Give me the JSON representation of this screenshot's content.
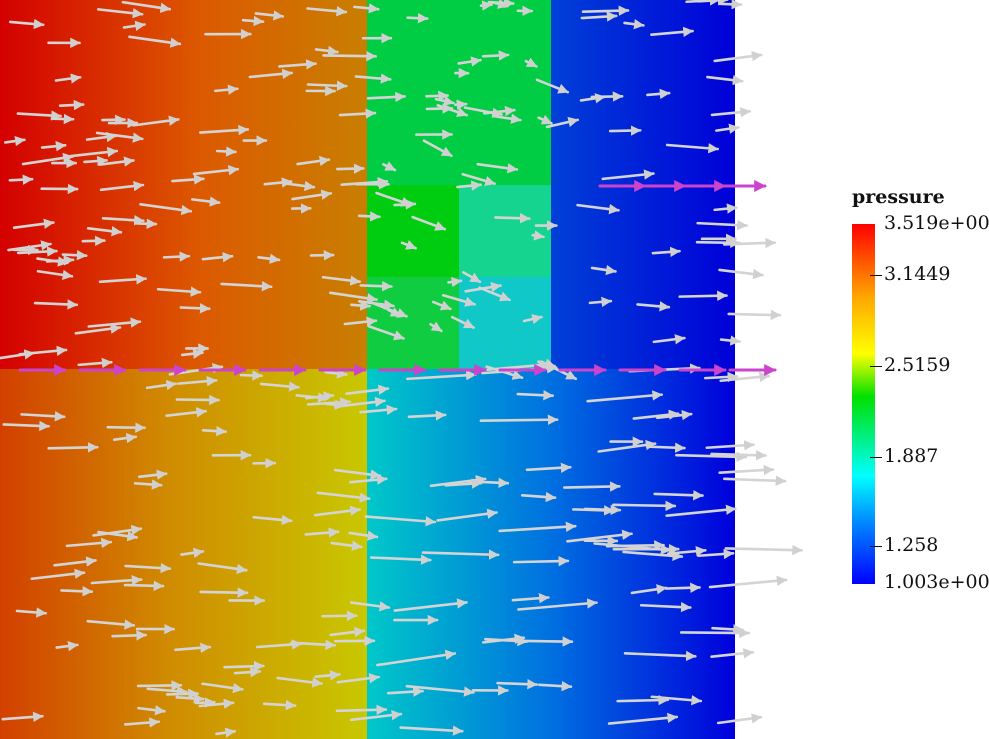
{
  "legend": {
    "title": "pressure",
    "labels": [
      "3.519e+00",
      "3.1449",
      "2.5159",
      "1.887",
      "1.258",
      "1.003e+00"
    ]
  },
  "colors": {
    "high": "#d40000",
    "mid": "#00d000",
    "low": "#0000d8",
    "arrow": "#cfcfcf",
    "highlight_arrow": "#cc44cc"
  }
}
